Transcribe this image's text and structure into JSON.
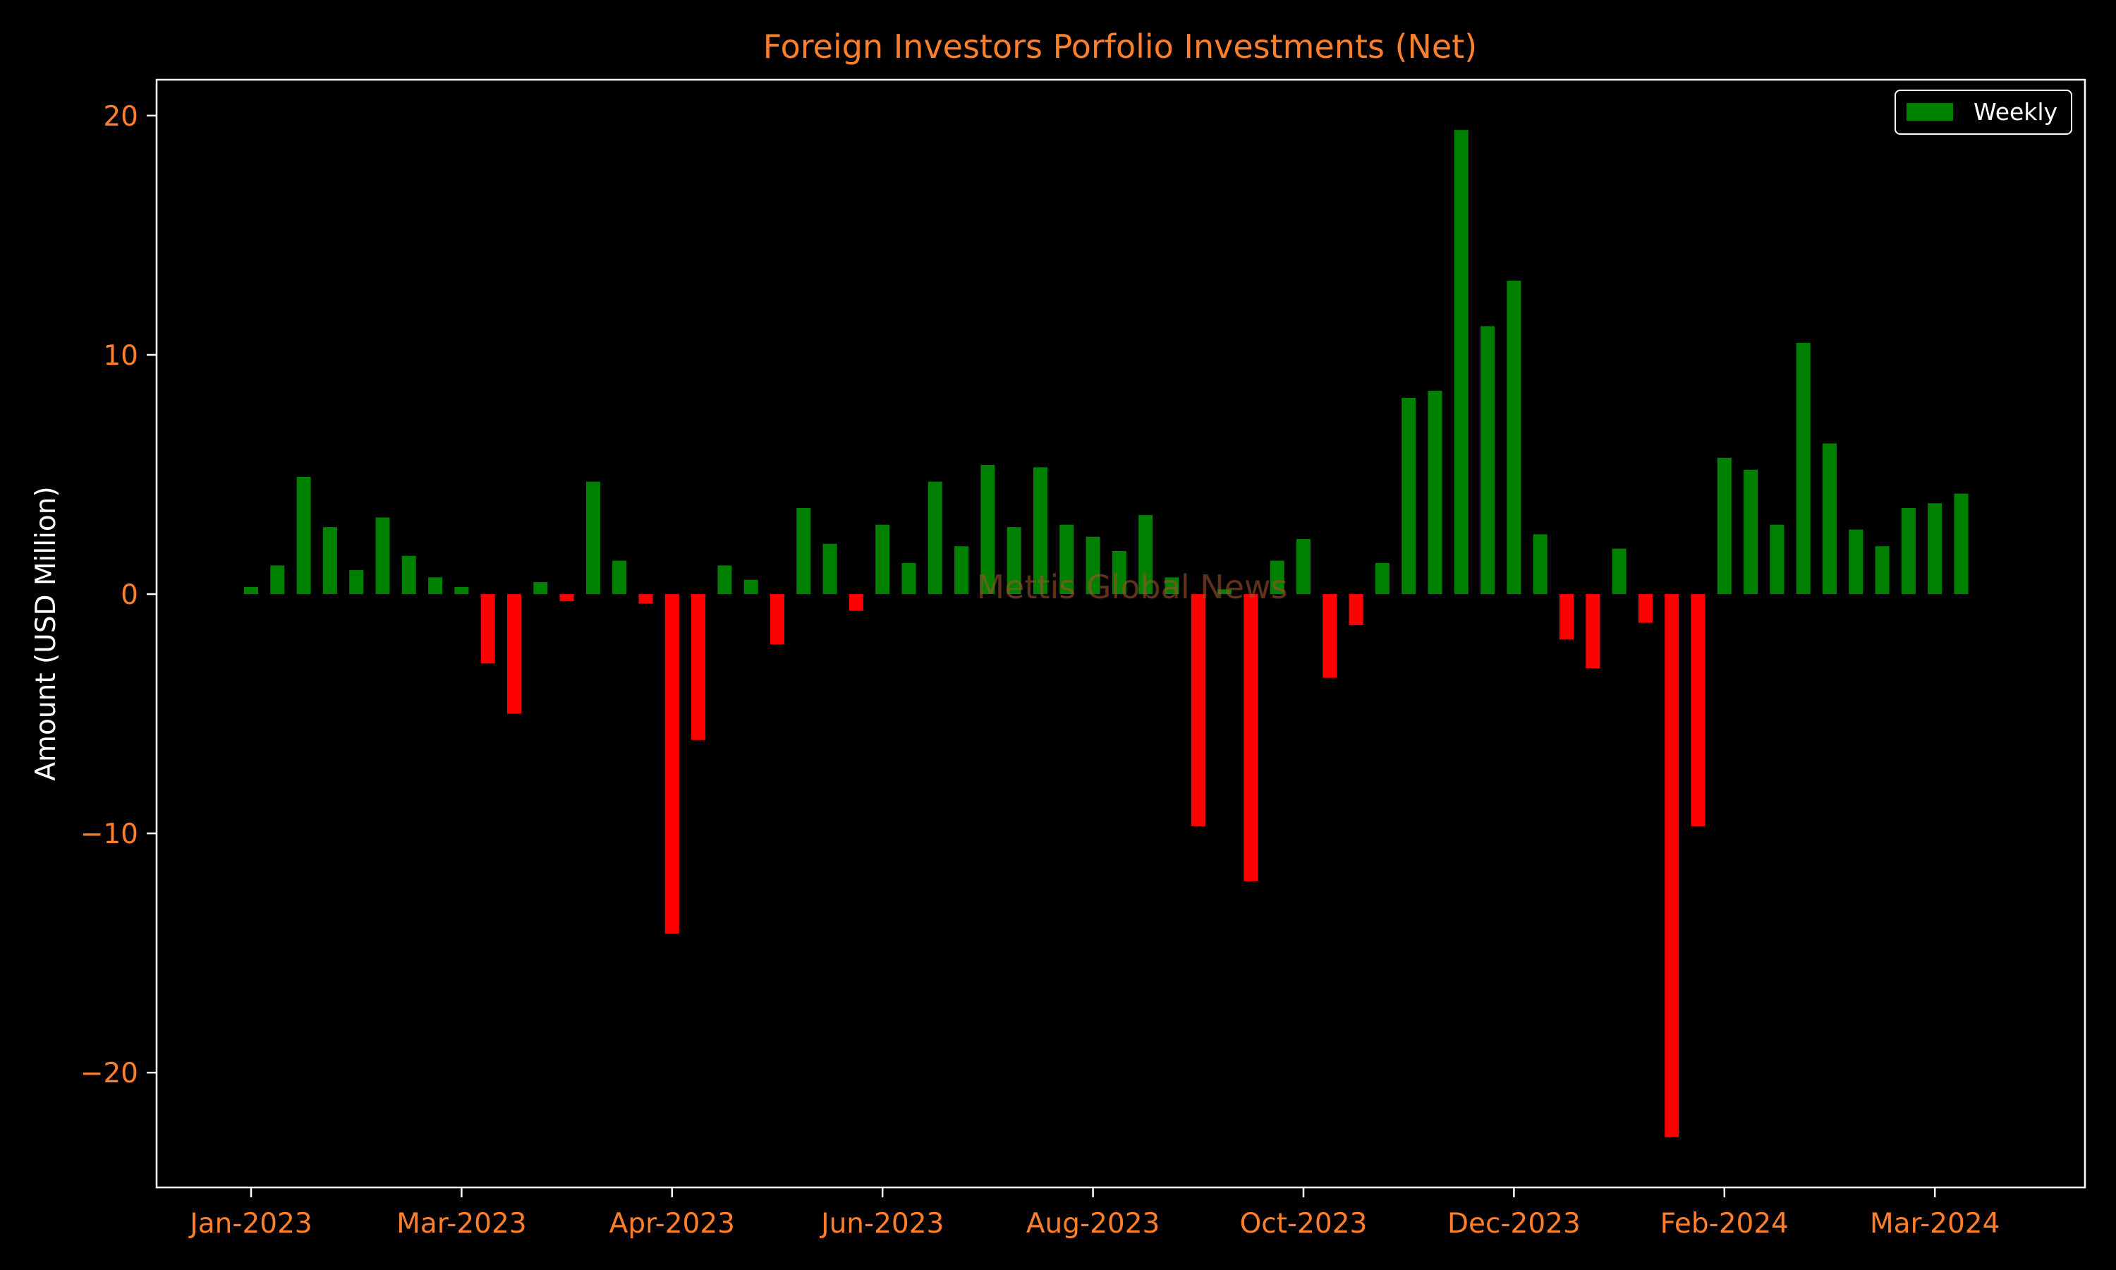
{
  "chart_data": {
    "type": "bar",
    "title": "Foreign Investors Porfolio Investments (Net)",
    "xlabel": "",
    "ylabel": "Amount (USD Million)",
    "ylim": [
      -24.8,
      21.5
    ],
    "yticks": [
      20,
      10,
      0,
      -10,
      -20
    ],
    "ytick_labels": [
      "20",
      "10",
      "0",
      "−10",
      "−20"
    ],
    "xticks": [
      {
        "label": "Jan-2023",
        "index": 0
      },
      {
        "label": "Mar-2023",
        "index": 8
      },
      {
        "label": "Apr-2023",
        "index": 16
      },
      {
        "label": "Jun-2023",
        "index": 24
      },
      {
        "label": "Aug-2023",
        "index": 32
      },
      {
        "label": "Oct-2023",
        "index": 40
      },
      {
        "label": "Dec-2023",
        "index": 48
      },
      {
        "label": "Feb-2024",
        "index": 56
      },
      {
        "label": "Mar-2024",
        "index": 64
      }
    ],
    "grid": false,
    "legend": {
      "label": "Weekly",
      "placement": "upper right"
    },
    "series": [
      {
        "name": "Weekly",
        "values": [
          0.3,
          1.2,
          4.9,
          2.8,
          1.0,
          3.2,
          1.6,
          0.7,
          0.3,
          -2.9,
          -5.0,
          0.5,
          -0.3,
          4.7,
          1.4,
          -0.4,
          -14.2,
          -6.1,
          1.2,
          0.6,
          -2.1,
          3.6,
          2.1,
          -0.7,
          2.9,
          1.3,
          4.7,
          2.0,
          5.4,
          2.8,
          5.3,
          2.9,
          2.4,
          1.8,
          3.3,
          0.7,
          -9.7,
          0.2,
          -12.0,
          1.4,
          2.3,
          -3.5,
          -1.3,
          1.3,
          8.2,
          8.5,
          19.4,
          11.2,
          13.1,
          2.5,
          -1.9,
          -3.1,
          1.9,
          -1.2,
          -22.7,
          -9.7,
          5.7,
          5.2,
          2.9,
          10.5,
          6.3,
          2.7,
          2.0,
          3.6,
          3.8,
          4.2
        ]
      }
    ],
    "watermark": "Mettis Global News"
  },
  "colors": {
    "background": "#000000",
    "positive": "#008000",
    "negative": "#ff0000",
    "axis": "#ffffff",
    "tick_label": "#ff7f2a",
    "title": "#ff7f2a",
    "ylabel": "#ffffff",
    "legend_text": "#ffffff",
    "watermark": "#a0522d"
  }
}
